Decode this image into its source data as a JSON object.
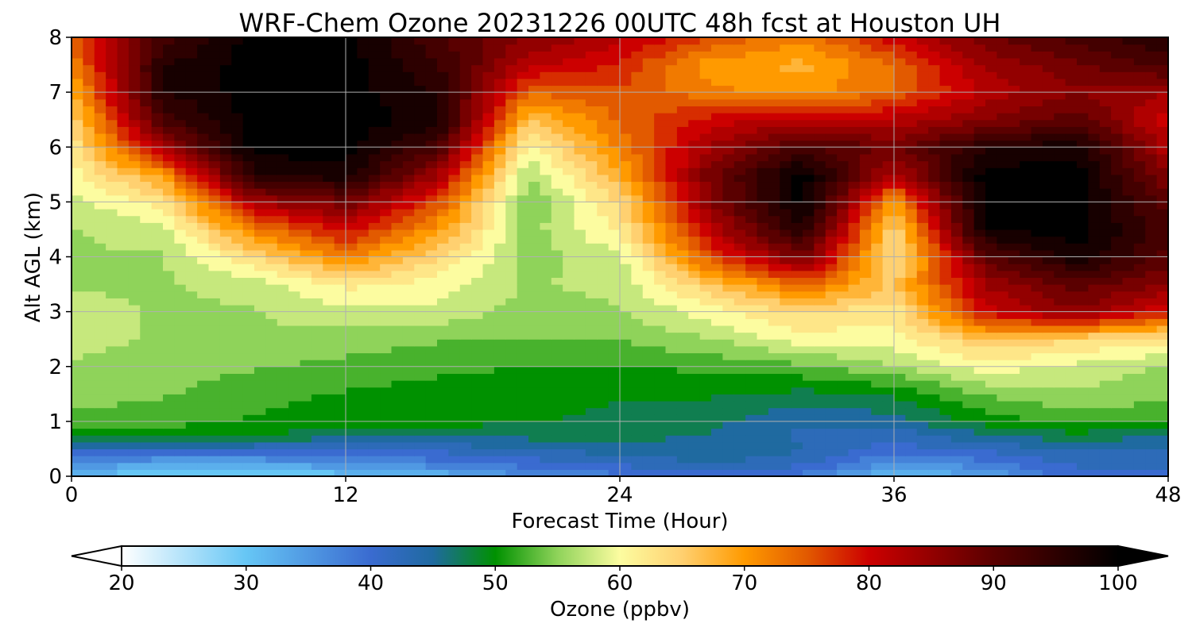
{
  "chart_data": {
    "type": "heatmap",
    "title": "WRF-Chem Ozone  20231226 00UTC 48h fcst at Houston UH",
    "xlabel": "Forecast Time (Hour)",
    "ylabel": "Alt AGL (km)",
    "xlim": [
      0,
      48
    ],
    "ylim": [
      0,
      8
    ],
    "xticks": [
      "0",
      "12",
      "24",
      "36",
      "48"
    ],
    "xtick_values": [
      0,
      12,
      24,
      36,
      48
    ],
    "yticks": [
      "0",
      "1",
      "2",
      "3",
      "4",
      "5",
      "6",
      "7",
      "8"
    ],
    "ytick_values": [
      0,
      1,
      2,
      3,
      4,
      5,
      6,
      7,
      8
    ],
    "grid": true,
    "colorbar": {
      "label": "Ozone  (ppbv)",
      "range": [
        20,
        100
      ],
      "extend": "both",
      "ticks": [
        "20",
        "30",
        "40",
        "50",
        "60",
        "70",
        "80",
        "90",
        "100"
      ],
      "tick_values": [
        20,
        30,
        40,
        50,
        60,
        70,
        80,
        90,
        100
      ],
      "color_stops": [
        {
          "value": 20,
          "color": "#ffffff"
        },
        {
          "value": 30,
          "color": "#66c6f5"
        },
        {
          "value": 40,
          "color": "#3a6bd0"
        },
        {
          "value": 45,
          "color": "#1f6aa0"
        },
        {
          "value": 50,
          "color": "#009100"
        },
        {
          "value": 55,
          "color": "#8fd35a"
        },
        {
          "value": 60,
          "color": "#fcfca0"
        },
        {
          "value": 65,
          "color": "#ffd070"
        },
        {
          "value": 70,
          "color": "#ff9a00"
        },
        {
          "value": 75,
          "color": "#e25a00"
        },
        {
          "value": 80,
          "color": "#cc0000"
        },
        {
          "value": 90,
          "color": "#5a0000"
        },
        {
          "value": 100,
          "color": "#000000"
        }
      ]
    },
    "x": [
      0,
      4,
      8,
      12,
      16,
      20,
      24,
      28,
      32,
      36,
      40,
      44,
      48
    ],
    "y": [
      0,
      0.25,
      0.5,
      0.75,
      1,
      1.5,
      2,
      2.5,
      3,
      3.5,
      4,
      4.5,
      5,
      5.5,
      6,
      6.5,
      7,
      7.5,
      8
    ],
    "z": [
      [
        32,
        28,
        28,
        30,
        32,
        36,
        38,
        40,
        38,
        30,
        34,
        40,
        40
      ],
      [
        36,
        34,
        34,
        36,
        38,
        40,
        42,
        44,
        42,
        36,
        38,
        42,
        42
      ],
      [
        42,
        42,
        42,
        42,
        42,
        44,
        45,
        46,
        44,
        40,
        42,
        44,
        44
      ],
      [
        50,
        50,
        49,
        47,
        46,
        47,
        47,
        46,
        43,
        42,
        46,
        48,
        46
      ],
      [
        53,
        52,
        51,
        50,
        50,
        49,
        48,
        47,
        44,
        45,
        50,
        52,
        52
      ],
      [
        55,
        54,
        52,
        51,
        50,
        50,
        49,
        49,
        48,
        49,
        54,
        56,
        54
      ],
      [
        56,
        55,
        54,
        53,
        52,
        51,
        51,
        52,
        53,
        56,
        60,
        58,
        56
      ],
      [
        57,
        56,
        56,
        55,
        54,
        54,
        54,
        56,
        60,
        60,
        66,
        64,
        62
      ],
      [
        57,
        56,
        56,
        58,
        58,
        55,
        56,
        60,
        64,
        62,
        80,
        86,
        78
      ],
      [
        56,
        56,
        57,
        62,
        60,
        56,
        57,
        66,
        74,
        66,
        84,
        90,
        86
      ],
      [
        56,
        56,
        64,
        72,
        64,
        55,
        58,
        76,
        88,
        62,
        90,
        98,
        90
      ],
      [
        56,
        58,
        72,
        80,
        70,
        55,
        62,
        82,
        96,
        64,
        99,
        100,
        92
      ],
      [
        58,
        62,
        84,
        88,
        76,
        54,
        64,
        86,
        100,
        70,
        100,
        100,
        90
      ],
      [
        60,
        70,
        96,
        98,
        84,
        56,
        68,
        88,
        100,
        82,
        100,
        100,
        86
      ],
      [
        62,
        84,
        100,
        100,
        92,
        60,
        72,
        84,
        92,
        88,
        96,
        98,
        82
      ],
      [
        64,
        92,
        100,
        100,
        98,
        66,
        74,
        80,
        82,
        82,
        86,
        90,
        80
      ],
      [
        68,
        96,
        100,
        100,
        96,
        74,
        76,
        72,
        70,
        74,
        82,
        86,
        84
      ],
      [
        72,
        96,
        100,
        100,
        94,
        82,
        78,
        70,
        68,
        74,
        84,
        88,
        92
      ],
      [
        74,
        92,
        100,
        100,
        92,
        86,
        82,
        76,
        72,
        80,
        88,
        92,
        96
      ]
    ]
  }
}
